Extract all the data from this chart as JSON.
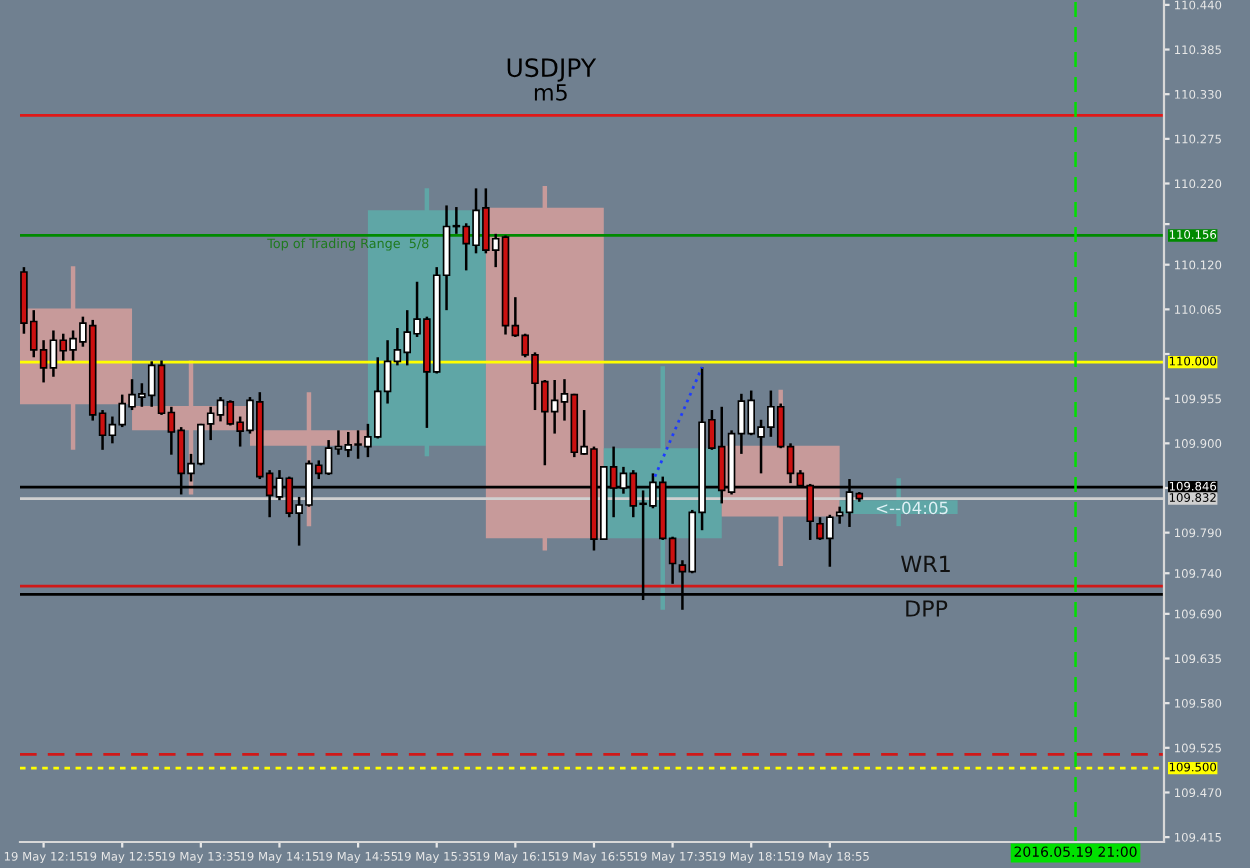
{
  "chart_data": {
    "type": "candlestick",
    "title": "USDJPY",
    "subtitle": "m5",
    "xlim": [
      "2016-05-19T12:03",
      "2016-05-19T21:45"
    ],
    "xticks": [
      {
        "value": "2016-05-19T12:15",
        "label": "19 May 12:15"
      },
      {
        "value": "2016-05-19T12:55",
        "label": "19 May 12:55"
      },
      {
        "value": "2016-05-19T13:35",
        "label": "19 May 13:35"
      },
      {
        "value": "2016-05-19T14:15",
        "label": "19 May 14:15"
      },
      {
        "value": "2016-05-19T14:55",
        "label": "19 May 14:55"
      },
      {
        "value": "2016-05-19T15:35",
        "label": "19 May 15:35"
      },
      {
        "value": "2016-05-19T16:15",
        "label": "19 May 16:15"
      },
      {
        "value": "2016-05-19T16:55",
        "label": "19 May 16:55"
      },
      {
        "value": "2016-05-19T17:35",
        "label": "19 May 17:35"
      },
      {
        "value": "2016-05-19T18:15",
        "label": "19 May 18:15"
      },
      {
        "value": "2016-05-19T18:55",
        "label": "19 May 18:55"
      }
    ],
    "ylim": [
      109.409,
      110.446
    ],
    "yticks": [
      "110.440",
      "110.385",
      "110.330",
      "110.275",
      "110.220",
      {
        "value": 110.17,
        "label": null
      },
      "110.120",
      "110.065",
      {
        "value": 110.01,
        "label": null
      },
      "109.955",
      "109.900",
      {
        "value": 109.845,
        "label": null
      },
      "109.790",
      "109.740",
      "109.690",
      "109.635",
      "109.580",
      "109.525",
      "109.470",
      "109.415"
    ],
    "grid": false,
    "series": [
      {
        "x": [
          "2016-05-19T12:30",
          "2016-05-19T13:30",
          "2016-05-19T14:30",
          "2016-05-19T15:30",
          "2016-05-19T16:30",
          "2016-05-19T17:30",
          "2016-05-19T18:30",
          "2016-05-19T19:30"
        ],
        "ohlc": [
          [
            110.066,
            110.118,
            109.892,
            109.948
          ],
          [
            109.946,
            110.002,
            109.837,
            109.916
          ],
          [
            109.916,
            109.963,
            109.798,
            109.897
          ],
          [
            109.897,
            110.214,
            109.884,
            110.187
          ],
          [
            110.19,
            110.217,
            109.768,
            109.783
          ],
          [
            109.783,
            109.995,
            109.695,
            109.894
          ],
          [
            109.897,
            109.966,
            109.749,
            109.81
          ],
          [
            109.813,
            109.857,
            109.798,
            109.83
          ]
        ],
        "colors": [
          "#c79a9a",
          "#c79a9a",
          "#c79a9a",
          "#5fa6a6",
          "#c79a9a",
          "#5fa6a6",
          "#c79a9a",
          "#5fa6a6"
        ]
      },
      {
        "x": [
          "2016-05-19T12:05",
          "2016-05-19T12:10",
          "2016-05-19T12:15",
          "2016-05-19T12:20",
          "2016-05-19T12:25",
          "2016-05-19T12:30",
          "2016-05-19T12:35",
          "2016-05-19T12:40",
          "2016-05-19T12:45",
          "2016-05-19T12:50",
          "2016-05-19T12:55",
          "2016-05-19T13:00",
          "2016-05-19T13:05",
          "2016-05-19T13:10",
          "2016-05-19T13:15",
          "2016-05-19T13:20",
          "2016-05-19T13:25",
          "2016-05-19T13:30",
          "2016-05-19T13:35",
          "2016-05-19T13:40",
          "2016-05-19T13:45",
          "2016-05-19T13:50",
          "2016-05-19T13:55",
          "2016-05-19T14:00",
          "2016-05-19T14:05",
          "2016-05-19T14:10",
          "2016-05-19T14:15",
          "2016-05-19T14:20",
          "2016-05-19T14:25",
          "2016-05-19T14:30",
          "2016-05-19T14:35",
          "2016-05-19T14:40",
          "2016-05-19T14:45",
          "2016-05-19T14:50",
          "2016-05-19T14:55",
          "2016-05-19T15:00",
          "2016-05-19T15:05",
          "2016-05-19T15:10",
          "2016-05-19T15:15",
          "2016-05-19T15:20",
          "2016-05-19T15:25",
          "2016-05-19T15:30",
          "2016-05-19T15:35",
          "2016-05-19T15:40",
          "2016-05-19T15:45",
          "2016-05-19T15:50",
          "2016-05-19T15:55",
          "2016-05-19T16:00",
          "2016-05-19T16:05",
          "2016-05-19T16:10",
          "2016-05-19T16:15",
          "2016-05-19T16:20",
          "2016-05-19T16:25",
          "2016-05-19T16:30",
          "2016-05-19T16:35",
          "2016-05-19T16:40",
          "2016-05-19T16:45",
          "2016-05-19T16:50",
          "2016-05-19T16:55",
          "2016-05-19T17:00",
          "2016-05-19T17:05",
          "2016-05-19T17:10",
          "2016-05-19T17:15",
          "2016-05-19T17:20",
          "2016-05-19T17:25",
          "2016-05-19T17:30",
          "2016-05-19T17:35",
          "2016-05-19T17:40",
          "2016-05-19T17:45",
          "2016-05-19T17:50",
          "2016-05-19T17:55",
          "2016-05-19T18:00",
          "2016-05-19T18:05",
          "2016-05-19T18:10",
          "2016-05-19T18:15",
          "2016-05-19T18:20",
          "2016-05-19T18:25",
          "2016-05-19T18:30",
          "2016-05-19T18:35",
          "2016-05-19T18:40",
          "2016-05-19T18:45",
          "2016-05-19T18:50",
          "2016-05-19T18:55",
          "2016-05-19T19:00",
          "2016-05-19T19:05",
          "2016-05-19T19:10"
        ],
        "ohlc": [
          [
            110.111,
            110.117,
            110.035,
            110.048
          ],
          [
            110.05,
            110.064,
            110.006,
            110.015
          ],
          [
            110.015,
            110.027,
            109.975,
            109.993
          ],
          [
            109.993,
            110.039,
            109.982,
            110.027
          ],
          [
            110.027,
            110.035,
            110.002,
            110.014
          ],
          [
            110.015,
            110.039,
            110.002,
            110.029
          ],
          [
            110.025,
            110.056,
            110.019,
            110.048
          ],
          [
            110.045,
            110.052,
            109.928,
            109.935
          ],
          [
            109.937,
            109.941,
            109.892,
            109.91
          ],
          [
            109.91,
            109.933,
            109.9,
            109.923
          ],
          [
            109.923,
            109.96,
            109.92,
            109.949
          ],
          [
            109.945,
            109.979,
            109.941,
            109.96
          ],
          [
            109.957,
            109.974,
            109.945,
            109.961
          ],
          [
            109.959,
            110.001,
            109.945,
            109.996
          ],
          [
            109.996,
            110.002,
            109.935,
            109.937
          ],
          [
            109.938,
            109.945,
            109.886,
            109.914
          ],
          [
            109.916,
            109.92,
            109.837,
            109.863
          ],
          [
            109.863,
            109.887,
            109.853,
            109.875
          ],
          [
            109.875,
            109.924,
            109.873,
            109.923
          ],
          [
            109.924,
            109.945,
            109.904,
            109.937
          ],
          [
            109.935,
            109.957,
            109.927,
            109.953
          ],
          [
            109.951,
            109.953,
            109.922,
            109.924
          ],
          [
            109.926,
            109.933,
            109.896,
            109.915
          ],
          [
            109.916,
            109.957,
            109.912,
            109.953
          ],
          [
            109.951,
            109.963,
            109.856,
            109.859
          ],
          [
            109.863,
            109.867,
            109.809,
            109.836
          ],
          [
            109.834,
            109.867,
            109.83,
            109.857
          ],
          [
            109.857,
            109.859,
            109.809,
            109.814
          ],
          [
            109.814,
            109.834,
            109.774,
            109.824
          ],
          [
            109.824,
            109.879,
            109.822,
            109.875
          ],
          [
            109.873,
            109.879,
            109.856,
            109.863
          ],
          [
            109.863,
            109.904,
            109.861,
            109.894
          ],
          [
            109.893,
            109.916,
            109.886,
            109.896
          ],
          [
            109.892,
            109.914,
            109.883,
            109.898
          ],
          [
            109.898,
            109.916,
            109.881,
            109.899
          ],
          [
            109.896,
            109.924,
            109.883,
            109.908
          ],
          [
            109.908,
            110.006,
            109.906,
            109.964
          ],
          [
            109.964,
            110.027,
            109.949,
            110.001
          ],
          [
            110.001,
            110.042,
            109.996,
            110.015
          ],
          [
            110.012,
            110.064,
            109.996,
            110.037
          ],
          [
            110.035,
            110.099,
            110.031,
            110.053
          ],
          [
            110.053,
            110.056,
            109.919,
            109.988
          ],
          [
            109.988,
            110.117,
            109.986,
            110.107
          ],
          [
            110.107,
            110.193,
            110.064,
            110.167
          ],
          [
            110.167,
            110.191,
            110.158,
            110.168
          ],
          [
            110.167,
            110.171,
            110.113,
            110.146
          ],
          [
            110.144,
            110.214,
            110.134,
            110.187
          ],
          [
            110.19,
            110.214,
            110.134,
            110.138
          ],
          [
            110.138,
            110.158,
            110.117,
            110.152
          ],
          [
            110.154,
            110.156,
            110.034,
            110.045
          ],
          [
            110.045,
            110.08,
            110.031,
            110.033
          ],
          [
            110.033,
            110.035,
            110.006,
            110.009
          ],
          [
            110.009,
            110.012,
            109.941,
            109.974
          ],
          [
            109.976,
            109.978,
            109.873,
            109.939
          ],
          [
            109.939,
            109.978,
            109.912,
            109.953
          ],
          [
            109.951,
            109.979,
            109.928,
            109.961
          ],
          [
            109.96,
            109.961,
            109.883,
            109.889
          ],
          [
            109.887,
            109.941,
            109.886,
            109.896
          ],
          [
            109.893,
            109.896,
            109.768,
            109.782
          ],
          [
            109.782,
            109.871,
            109.781,
            109.871
          ],
          [
            109.871,
            109.896,
            109.809,
            109.845
          ],
          [
            109.845,
            109.871,
            109.838,
            109.863
          ],
          [
            109.863,
            109.867,
            109.809,
            109.823
          ],
          [
            109.825,
            109.842,
            109.707,
            109.826
          ],
          [
            109.823,
            109.863,
            109.82,
            109.852
          ],
          [
            109.852,
            109.859,
            109.781,
            109.783
          ],
          [
            109.783,
            109.785,
            109.727,
            109.752
          ],
          [
            109.75,
            109.756,
            109.695,
            109.742
          ],
          [
            109.742,
            109.818,
            109.74,
            109.815
          ],
          [
            109.815,
            109.994,
            109.793,
            109.926
          ],
          [
            109.929,
            109.941,
            109.892,
            109.894
          ],
          [
            109.896,
            109.945,
            109.826,
            109.842
          ],
          [
            109.84,
            109.916,
            109.837,
            109.912
          ],
          [
            109.912,
            109.961,
            109.887,
            109.952
          ],
          [
            109.912,
            109.965,
            109.91,
            109.953
          ],
          [
            109.908,
            109.929,
            109.863,
            109.92
          ],
          [
            109.92,
            109.965,
            109.908,
            109.945
          ],
          [
            109.945,
            109.949,
            109.894,
            109.896
          ],
          [
            109.896,
            109.9,
            109.851,
            109.863
          ],
          [
            109.863,
            109.867,
            109.845,
            109.848
          ],
          [
            109.848,
            109.85,
            109.781,
            109.804
          ],
          [
            109.801,
            109.809,
            109.781,
            109.783
          ],
          [
            109.783,
            109.812,
            109.748,
            109.809
          ],
          [
            109.811,
            109.822,
            109.801,
            109.815
          ],
          [
            109.815,
            109.856,
            109.797,
            109.84
          ],
          [
            109.838,
            109.84,
            109.828,
            109.832
          ]
        ],
        "colors": [
          "#cc1010",
          "#cc1010",
          "#cc1010",
          "#ffffff",
          "#cc1010",
          "#ffffff",
          "#ffffff",
          "#cc1010",
          "#cc1010",
          "#ffffff",
          "#ffffff",
          "#ffffff",
          "#ffffff",
          "#ffffff",
          "#cc1010",
          "#cc1010",
          "#cc1010",
          "#ffffff",
          "#ffffff",
          "#ffffff",
          "#ffffff",
          "#cc1010",
          "#cc1010",
          "#ffffff",
          "#cc1010",
          "#cc1010",
          "#ffffff",
          "#cc1010",
          "#ffffff",
          "#ffffff",
          "#cc1010",
          "#ffffff",
          "#ffffff",
          "#ffffff",
          "#ffffff",
          "#ffffff",
          "#ffffff",
          "#ffffff",
          "#ffffff",
          "#ffffff",
          "#ffffff",
          "#cc1010",
          "#ffffff",
          "#ffffff",
          "#ffffff",
          "#cc1010",
          "#ffffff",
          "#cc1010",
          "#ffffff",
          "#cc1010",
          "#cc1010",
          "#cc1010",
          "#cc1010",
          "#cc1010",
          "#ffffff",
          "#ffffff",
          "#cc1010",
          "#ffffff",
          "#cc1010",
          "#ffffff",
          "#cc1010",
          "#ffffff",
          "#cc1010",
          "#ffffff",
          "#ffffff",
          "#cc1010",
          "#cc1010",
          "#cc1010",
          "#ffffff",
          "#ffffff",
          "#cc1010",
          "#cc1010",
          "#ffffff",
          "#ffffff",
          "#ffffff",
          "#ffffff",
          "#ffffff",
          "#cc1010",
          "#cc1010",
          "#cc1010",
          "#cc1010",
          "#cc1010",
          "#ffffff",
          "#ffffff",
          "#ffffff",
          "#cc1010"
        ]
      },
      {
        "type": "line",
        "x": [
          "2016-05-19T17:26",
          "2016-05-19T17:50"
        ],
        "values": [
          109.859,
          109.994
        ],
        "color": "#1e3cff",
        "line_style": "dotted"
      }
    ],
    "ref_lines": [
      {
        "axis": "y",
        "value": 110.304,
        "color": "#e01818"
      },
      {
        "axis": "y",
        "value": 110.156,
        "label": "110.156",
        "color": "#008a00"
      },
      {
        "axis": "y",
        "value": 110.0,
        "label": "110.000",
        "color": "#ffff00"
      },
      {
        "axis": "y",
        "value": 109.846,
        "label": "109.846",
        "color": "#000000"
      },
      {
        "axis": "y",
        "value": 109.832,
        "label": "109.832",
        "color": "#d0d0d0"
      },
      {
        "axis": "y",
        "value": 109.724,
        "color": "#d01818"
      },
      {
        "axis": "y",
        "value": 109.714,
        "color": "#000000"
      },
      {
        "axis": "y",
        "value": 109.517,
        "color": "#d01818",
        "line_style": "dashed"
      },
      {
        "axis": "y",
        "value": 109.5,
        "label": "109.500",
        "color": "#ffff00",
        "line_style": "dotted"
      },
      {
        "axis": "x",
        "value": "2016-05-19T21:00",
        "label": "2016.05.19 21:00",
        "color": "#00e000",
        "line_style": "dashed"
      }
    ],
    "annotations": [
      {
        "text": "Top of Trading Range  5/8",
        "x": "2016-05-19T14:50",
        "y": 110.156
      },
      "WR1",
      "DPP",
      {
        "text": "<--04:05",
        "x": "2016-05-19T19:18",
        "y": 109.832
      }
    ]
  }
}
